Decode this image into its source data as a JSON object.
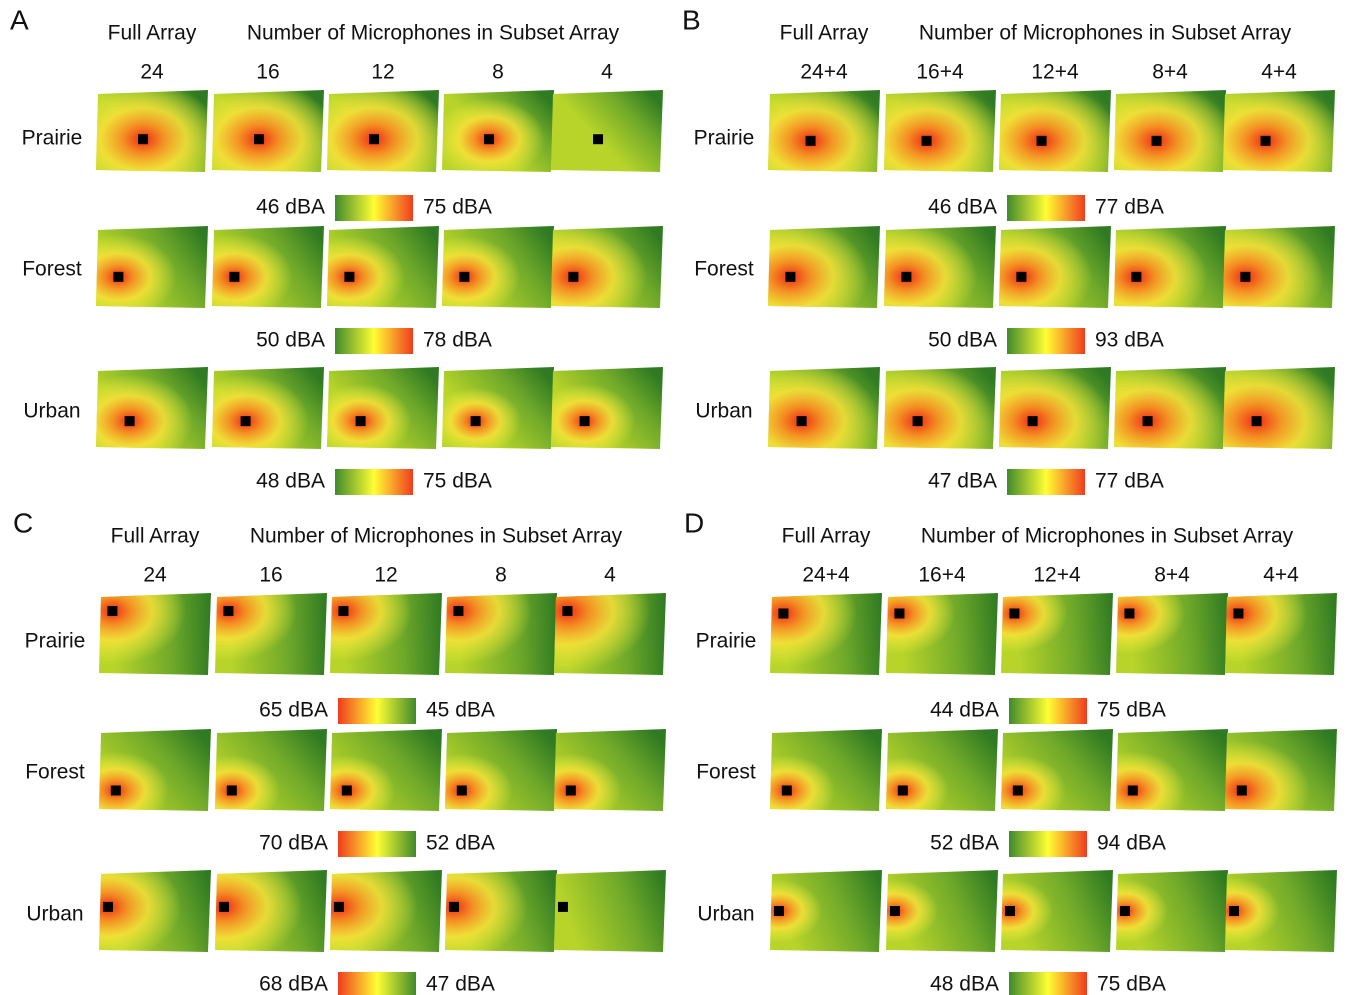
{
  "panels": [
    {
      "letter": "A",
      "header_full": "Full Array",
      "header_subset": "Number of Microphones in Subset Array",
      "columns": [
        "24",
        "16",
        "12",
        "8",
        "4"
      ],
      "colorbar": "green-to-red",
      "rows": [
        {
          "label": "Prairie",
          "scale_left": "46 dBA",
          "scale_right": "75 dBA"
        },
        {
          "label": "Forest",
          "scale_left": "50 dBA",
          "scale_right": "78 dBA"
        },
        {
          "label": "Urban",
          "scale_left": "48 dBA",
          "scale_right": "75 dBA"
        }
      ]
    },
    {
      "letter": "B",
      "header_full": "Full Array",
      "header_subset": "Number of Microphones in Subset Array",
      "columns": [
        "24+4",
        "16+4",
        "12+4",
        "8+4",
        "4+4"
      ],
      "colorbar": "green-to-red",
      "rows": [
        {
          "label": "Prairie",
          "scale_left": "46 dBA",
          "scale_right": "77 dBA"
        },
        {
          "label": "Forest",
          "scale_left": "50 dBA",
          "scale_right": "93 dBA"
        },
        {
          "label": "Urban",
          "scale_left": "47 dBA",
          "scale_right": "77 dBA"
        }
      ]
    },
    {
      "letter": "C",
      "header_full": "Full Array",
      "header_subset": "Number of Microphones in Subset Array",
      "columns": [
        "24",
        "16",
        "12",
        "8",
        "4"
      ],
      "colorbar": "red-to-green",
      "rows": [
        {
          "label": "Prairie",
          "scale_left": "65 dBA",
          "scale_right": "45 dBA"
        },
        {
          "label": "Forest",
          "scale_left": "70 dBA",
          "scale_right": "52 dBA"
        },
        {
          "label": "Urban",
          "scale_left": "68 dBA",
          "scale_right": "47 dBA"
        }
      ]
    },
    {
      "letter": "D",
      "header_full": "Full Array",
      "header_subset": "Number of Microphones in Subset Array",
      "columns": [
        "24+4",
        "16+4",
        "12+4",
        "8+4",
        "4+4"
      ],
      "colorbar": "green-to-red",
      "rows": [
        {
          "label": "Prairie",
          "scale_left": "44 dBA",
          "scale_right": "75 dBA"
        },
        {
          "label": "Forest",
          "scale_left": "52 dBA",
          "scale_right": "94 dBA"
        },
        {
          "label": "Urban",
          "scale_left": "48 dBA",
          "scale_right": "75 dBA"
        }
      ]
    }
  ]
}
